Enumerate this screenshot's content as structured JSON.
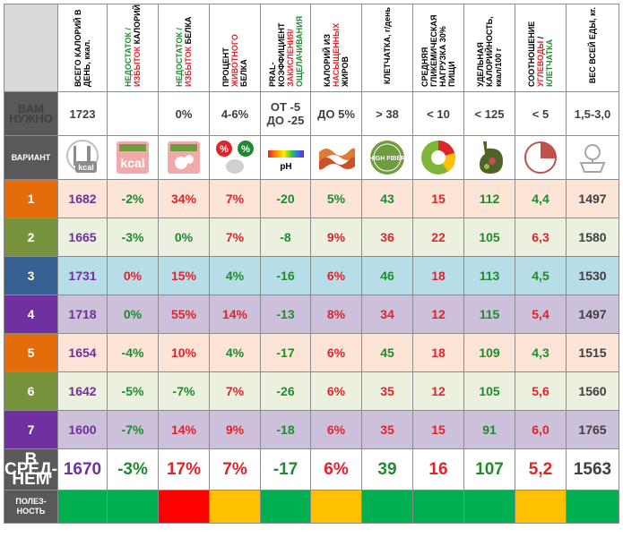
{
  "headers": [
    {
      "id": "kcal",
      "parts": [
        [
          "ВСЕГО КАЛОРИЙ В ДЕНЬ, ккал.",
          "#000000"
        ]
      ]
    },
    {
      "id": "deficit",
      "parts": [
        [
          "НЕДОСТАТОК / ",
          "#1f8b2e"
        ],
        [
          "ИЗБЫТОК",
          "#e0242b"
        ],
        [
          " КАЛОРИЙ",
          "#000000"
        ]
      ]
    },
    {
      "id": "protein",
      "parts": [
        [
          "НЕДОСТАТОК / ",
          "#1f8b2e"
        ],
        [
          "ИЗБЫТОК",
          "#e0242b"
        ],
        [
          " БЕЛКА",
          "#000000"
        ]
      ]
    },
    {
      "id": "animal",
      "parts": [
        [
          "ПРОЦЕНТ ",
          "#000000"
        ],
        [
          "ЖИВОТНОГО",
          "#e0242b"
        ],
        [
          " БЕЛКА",
          "#000000"
        ]
      ]
    },
    {
      "id": "pral",
      "parts": [
        [
          "PRAL-КОЭФФИЦИЕНТ ",
          "#000000"
        ],
        [
          "ЗАКИСЛЕНИЯ/",
          "#e0242b"
        ],
        [
          "ОЩЕЛАЧИВАНИЯ",
          "#1f8b2e"
        ]
      ]
    },
    {
      "id": "satfat",
      "parts": [
        [
          "КАЛОРИЙ ИЗ ",
          "#000000"
        ],
        [
          "НАСЫЩЕННЫХ",
          "#e0242b"
        ],
        [
          " ЖИРОВ",
          "#000000"
        ]
      ]
    },
    {
      "id": "fiber",
      "parts": [
        [
          "КЛЕТЧАТКА, г/день",
          "#000000"
        ]
      ]
    },
    {
      "id": "gl",
      "parts": [
        [
          "СРЕДНЯЯ ГЛИКЕМИЧЕСКАЯ НАГРУЗКА 30% ПИЩИ",
          "#000000"
        ]
      ]
    },
    {
      "id": "density",
      "parts": [
        [
          "УДЕЛЬНАЯ КАЛОРИЙНОСТЬ, ккал/100 г",
          "#000000"
        ]
      ]
    },
    {
      "id": "ratio",
      "parts": [
        [
          "СООТНОШЕНИЕ ",
          "#000000"
        ],
        [
          "УГЛЕВОДЫ",
          "#e0242b"
        ],
        [
          " / ",
          "#000000"
        ],
        [
          "КЛЕТЧАТКА",
          "#1f8b2e"
        ]
      ]
    },
    {
      "id": "weight",
      "parts": [
        [
          "ВЕС ВСЕЙ ЕДЫ, кг.",
          "#000000"
        ]
      ]
    }
  ],
  "labels": {
    "need": "ВАМ НУЖНО",
    "variant": "ВАРИАНТ",
    "average": "В СРЕД-НЕМ",
    "usefulness": "ПОЛЕЗ-НОСТЬ"
  },
  "needs": [
    "1723",
    "",
    "0%",
    "4-6%",
    "ОТ -5 ДО -25",
    "ДО 5%",
    "> 38",
    "< 10",
    "< 125",
    "< 5",
    "1,5-3,0"
  ],
  "icons": [
    "fork-knife-kcal-icon",
    "scale-kcal-icon",
    "scale-squirrel-icon",
    "percent-squirrel-icon",
    "ph-scale-icon",
    "bacon-icon",
    "high-fiber-badge-icon",
    "glycemic-plate-icon",
    "stomach-food-icon",
    "pie-ratio-icon",
    "scale-apple-icon"
  ],
  "icon_text": {
    "kcal": "kcal",
    "ph": "pH",
    "high_fiber": "HIGH FIBER",
    "percent": "%"
  },
  "variants": [
    {
      "num": "1",
      "color": "#e46c0a",
      "bg": "#fce4d6",
      "values": [
        "1682",
        "-2%",
        "34%",
        "7%",
        "-20",
        "5%",
        "43",
        "15",
        "112",
        "4,4",
        "1497"
      ],
      "colors": [
        "#7030a0",
        "#1f8b2e",
        "#e0242b",
        "#e0242b",
        "#1f8b2e",
        "#1f8b2e",
        "#1f8b2e",
        "#e0242b",
        "#1f8b2e",
        "#1f8b2e",
        "#404040"
      ]
    },
    {
      "num": "2",
      "color": "#77933c",
      "bg": "#ebf1de",
      "values": [
        "1665",
        "-3%",
        "0%",
        "7%",
        "-8",
        "9%",
        "36",
        "22",
        "105",
        "6,3",
        "1580"
      ],
      "colors": [
        "#7030a0",
        "#1f8b2e",
        "#1f8b2e",
        "#e0242b",
        "#1f8b2e",
        "#e0242b",
        "#e0242b",
        "#e0242b",
        "#1f8b2e",
        "#e0242b",
        "#404040"
      ]
    },
    {
      "num": "3",
      "color": "#366092",
      "bg": "#b7dee8",
      "values": [
        "1731",
        "0%",
        "15%",
        "4%",
        "-16",
        "6%",
        "46",
        "18",
        "113",
        "4,5",
        "1530"
      ],
      "colors": [
        "#7030a0",
        "#e0242b",
        "#e0242b",
        "#1f8b2e",
        "#1f8b2e",
        "#e0242b",
        "#1f8b2e",
        "#e0242b",
        "#1f8b2e",
        "#1f8b2e",
        "#404040"
      ]
    },
    {
      "num": "4",
      "color": "#7030a0",
      "bg": "#ccc0da",
      "values": [
        "1718",
        "0%",
        "55%",
        "14%",
        "-13",
        "8%",
        "34",
        "12",
        "115",
        "5,4",
        "1497"
      ],
      "colors": [
        "#7030a0",
        "#1f8b2e",
        "#e0242b",
        "#e0242b",
        "#1f8b2e",
        "#e0242b",
        "#e0242b",
        "#e0242b",
        "#1f8b2e",
        "#e0242b",
        "#404040"
      ]
    },
    {
      "num": "5",
      "color": "#e46c0a",
      "bg": "#fce4d6",
      "values": [
        "1654",
        "-4%",
        "10%",
        "4%",
        "-17",
        "6%",
        "45",
        "18",
        "109",
        "4,3",
        "1515"
      ],
      "colors": [
        "#7030a0",
        "#1f8b2e",
        "#e0242b",
        "#1f8b2e",
        "#1f8b2e",
        "#e0242b",
        "#1f8b2e",
        "#e0242b",
        "#1f8b2e",
        "#1f8b2e",
        "#404040"
      ]
    },
    {
      "num": "6",
      "color": "#77933c",
      "bg": "#ebf1de",
      "values": [
        "1642",
        "-5%",
        "-7%",
        "7%",
        "-26",
        "6%",
        "35",
        "12",
        "105",
        "5,6",
        "1560"
      ],
      "colors": [
        "#7030a0",
        "#1f8b2e",
        "#1f8b2e",
        "#e0242b",
        "#1f8b2e",
        "#e0242b",
        "#e0242b",
        "#e0242b",
        "#1f8b2e",
        "#e0242b",
        "#404040"
      ]
    },
    {
      "num": "7",
      "color": "#7030a0",
      "bg": "#ccc0da",
      "values": [
        "1600",
        "-7%",
        "14%",
        "9%",
        "-18",
        "6%",
        "35",
        "15",
        "91",
        "6,0",
        "1765"
      ],
      "colors": [
        "#7030a0",
        "#1f8b2e",
        "#e0242b",
        "#e0242b",
        "#1f8b2e",
        "#e0242b",
        "#e0242b",
        "#e0242b",
        "#1f8b2e",
        "#e0242b",
        "#404040"
      ]
    }
  ],
  "average": {
    "values": [
      "1670",
      "-3%",
      "17%",
      "7%",
      "-17",
      "6%",
      "39",
      "16",
      "107",
      "5,2",
      "1563"
    ],
    "colors": [
      "#7030a0",
      "#1f8b2e",
      "#e0242b",
      "#e0242b",
      "#1f8b2e",
      "#e0242b",
      "#1f8b2e",
      "#e0242b",
      "#1f8b2e",
      "#e0242b",
      "#404040"
    ]
  },
  "usefulness": [
    "#00b050",
    "#00b050",
    "#ff0000",
    "#ffc000",
    "#00b050",
    "#ffc000",
    "#00b050",
    "#00b050",
    "#00b050",
    "#ffc000",
    "#00b050"
  ]
}
